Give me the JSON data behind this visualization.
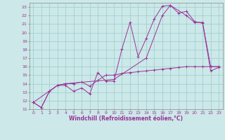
{
  "background_color": "#cce8e8",
  "grid_color": "#99cccc",
  "line_color": "#993399",
  "xlim": [
    -0.5,
    23.5
  ],
  "ylim": [
    11,
    23.5
  ],
  "xticks": [
    0,
    1,
    2,
    3,
    4,
    5,
    6,
    7,
    8,
    9,
    10,
    11,
    12,
    13,
    14,
    15,
    16,
    17,
    18,
    19,
    20,
    21,
    22,
    23
  ],
  "yticks": [
    11,
    12,
    13,
    14,
    15,
    16,
    17,
    18,
    19,
    20,
    21,
    22,
    23
  ],
  "xlabel": "Windchill (Refroidissement éolien,°C)",
  "series": [
    {
      "x": [
        0,
        1,
        2,
        3,
        4,
        5,
        6,
        7,
        8,
        9,
        10,
        11,
        12,
        13,
        14,
        15,
        16,
        17,
        18,
        19,
        20,
        21,
        22,
        23
      ],
      "y": [
        11.8,
        11.2,
        13.1,
        13.8,
        13.8,
        13.1,
        13.5,
        12.8,
        15.3,
        14.3,
        14.3,
        18.1,
        21.2,
        17.2,
        19.3,
        21.6,
        23.1,
        23.2,
        22.3,
        22.5,
        21.3,
        21.1,
        15.5,
        15.9
      ]
    },
    {
      "x": [
        0,
        1,
        2,
        3,
        4,
        5,
        6,
        7,
        8,
        9,
        10,
        11,
        12,
        13,
        14,
        15,
        16,
        17,
        18,
        19,
        20,
        21,
        22,
        23
      ],
      "y": [
        11.8,
        11.2,
        13.1,
        13.8,
        14.0,
        14.0,
        14.2,
        13.7,
        14.4,
        15.0,
        15.0,
        15.2,
        15.3,
        15.4,
        15.5,
        15.6,
        15.7,
        15.8,
        15.9,
        16.0,
        16.0,
        16.0,
        16.0,
        16.0
      ]
    },
    {
      "x": [
        0,
        3,
        4,
        10,
        14,
        16,
        17,
        19,
        20,
        21,
        22,
        23
      ],
      "y": [
        11.8,
        13.8,
        14.0,
        14.5,
        17.0,
        22.0,
        23.2,
        22.0,
        21.2,
        21.2,
        16.0,
        16.0
      ]
    }
  ],
  "tick_fontsize": 4.5,
  "label_fontsize": 5.5,
  "figsize": [
    3.2,
    2.0
  ],
  "dpi": 100
}
